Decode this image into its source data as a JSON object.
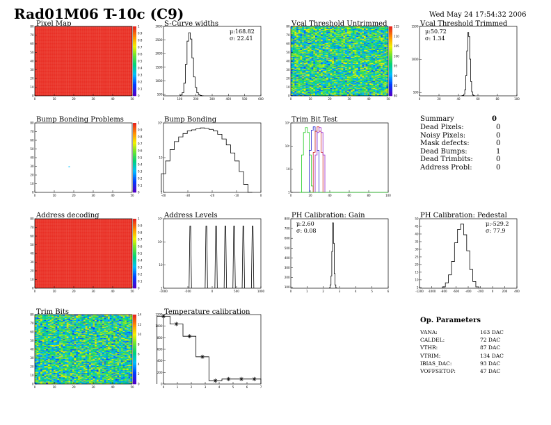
{
  "header": {
    "title": "Rad01M06 T-10c (C9)",
    "date": "Wed May 24 17:54:32 2006"
  },
  "colors": {
    "red": "#e8281e",
    "line": "#000000",
    "green": "#22cc22",
    "blue": "#2222cc",
    "red_line": "#cc2222",
    "purple": "#9922cc"
  },
  "panels": {
    "pixel_map": {
      "title": "Pixel Map",
      "xticks": [
        "0",
        "10",
        "20",
        "30",
        "40",
        "50"
      ],
      "yticks": [
        "0",
        "10",
        "20",
        "30",
        "40",
        "50",
        "60",
        "70",
        "80"
      ],
      "ztick": [
        "0",
        "0.1",
        "0.2",
        "0.3",
        "0.4",
        "0.5",
        "0.6",
        "0.7",
        "0.8",
        "0.9",
        "1"
      ]
    },
    "scurve": {
      "title": "S-Curve widths",
      "mu": "μ:168.82",
      "sigma": "σ: 22.41",
      "xticks": [
        "0",
        "100",
        "200",
        "300",
        "400",
        "500",
        "600"
      ],
      "yticks": [
        "500",
        "1000",
        "1500",
        "2000",
        "2500",
        "3000"
      ]
    },
    "vcal_untrim": {
      "title": "Vcal Threshold Untrimmed",
      "xticks": [
        "0",
        "10",
        "20",
        "30",
        "40",
        "50"
      ],
      "yticks": [
        "0",
        "10",
        "20",
        "30",
        "40",
        "50",
        "60",
        "70",
        "80"
      ],
      "zticks": [
        "80",
        "85",
        "90",
        "95",
        "100",
        "105",
        "110",
        "115"
      ]
    },
    "vcal_trim": {
      "title": "Vcal Threshold Trimmed",
      "mu": "μ:50.72",
      "sigma": "σ: 1.34",
      "xticks": [
        "0",
        "20",
        "40",
        "60",
        "80",
        "100"
      ],
      "yticks": [
        "500",
        "1000",
        "1500"
      ]
    },
    "bump_problems": {
      "title": "Bump Bonding Problems",
      "xticks": [
        "0",
        "10",
        "20",
        "30",
        "40",
        "50"
      ],
      "yticks": [
        "0",
        "10",
        "20",
        "30",
        "40",
        "50",
        "60",
        "70",
        "80"
      ],
      "zticks": [
        "0",
        "0.1",
        "0.2",
        "0.3",
        "0.4",
        "0.5",
        "0.6",
        "0.7",
        "0.8",
        "0.9",
        "1"
      ]
    },
    "bump_bonding": {
      "title": "Bump Bonding",
      "xticks": [
        "-40",
        "-30",
        "-20",
        "-10",
        "0"
      ],
      "yticks": [
        "1",
        "10",
        "10²"
      ]
    },
    "trim_bit": {
      "title": "Trim Bit Test",
      "xticks": [
        "0",
        "20",
        "40",
        "60",
        "80",
        "100"
      ],
      "yticks": [
        "1",
        "10",
        "10²",
        "10³"
      ]
    },
    "summary": {
      "title": "Summary",
      "total": "0",
      "rows": [
        {
          "label": "Dead Pixels:",
          "value": "0"
        },
        {
          "label": "Noisy Pixels:",
          "value": "0"
        },
        {
          "label": "Mask defects:",
          "value": "0"
        },
        {
          "label": "Dead Bumps:",
          "value": "1"
        },
        {
          "label": "Dead Trimbits:",
          "value": "0"
        },
        {
          "label": "Address Probl:",
          "value": "0"
        }
      ]
    },
    "address_decoding": {
      "title": "Address decoding",
      "xticks": [
        "0",
        "10",
        "20",
        "30",
        "40",
        "50"
      ],
      "yticks": [
        "0",
        "10",
        "20",
        "30",
        "40",
        "50",
        "60",
        "70",
        "80"
      ],
      "zticks": [
        "0",
        "0.1",
        "0.2",
        "0.3",
        "0.4",
        "0.5",
        "0.6",
        "0.7",
        "0.8",
        "0.9",
        "1"
      ]
    },
    "address_levels": {
      "title": "Address Levels",
      "xticks": [
        "-1000",
        "-500",
        "0",
        "500",
        "1000"
      ],
      "yticks": [
        "1",
        "10",
        "10²",
        "10³"
      ]
    },
    "ph_gain": {
      "title": "PH Calibration: Gain",
      "mu": "μ:2.60",
      "sigma": "σ: 0.08",
      "xticks": [
        "0",
        "1",
        "2",
        "3",
        "4",
        "5",
        "6"
      ],
      "yticks": [
        "100",
        "200",
        "300",
        "400",
        "500",
        "600",
        "700",
        "800"
      ]
    },
    "ph_pedestal": {
      "title": "PH Calibration: Pedestal",
      "mu": "μ:-529.2",
      "sigma": "σ: 77.9",
      "xticks": [
        "-1200",
        "-1000",
        "-800",
        "-600",
        "-400",
        "-200",
        "0",
        "200",
        "400"
      ],
      "yticks": [
        "5",
        "10",
        "15",
        "20",
        "25",
        "30",
        "35",
        "40",
        "45",
        "50"
      ]
    },
    "trim_bits": {
      "title": "Trim Bits",
      "xticks": [
        "0",
        "10",
        "20",
        "30",
        "40",
        "50"
      ],
      "yticks": [
        "0",
        "10",
        "20",
        "30",
        "40",
        "50",
        "60",
        "70",
        "80"
      ],
      "zticks": [
        "0",
        "2",
        "4",
        "6",
        "8",
        "10",
        "12",
        "14"
      ]
    },
    "temperature": {
      "title": "Temperature calibration",
      "xticks": [
        "0",
        "1",
        "2",
        "3",
        "4",
        "5",
        "6",
        "7"
      ],
      "yticks": [
        "0",
        "200",
        "400",
        "600",
        "800",
        "1000",
        "1200"
      ]
    },
    "op_params": {
      "title": "Op. Parameters",
      "rows": [
        {
          "label": "VANA:",
          "value": "163 DAC"
        },
        {
          "label": "CALDEL:",
          "value": "72 DAC"
        },
        {
          "label": "VTHR:",
          "value": "87 DAC"
        },
        {
          "label": "VTRIM:",
          "value": "134 DAC"
        },
        {
          "label": "IBIAS_DAC:",
          "value": "93 DAC"
        },
        {
          "label": "VOFFSETOP:",
          "value": "47 DAC"
        }
      ]
    }
  },
  "chart_data": [
    {
      "type": "heatmap",
      "title": "Pixel Map",
      "xlim": [
        0,
        52
      ],
      "ylim": [
        0,
        80
      ],
      "note_value": 1
    },
    {
      "type": "bar",
      "title": "S-Curve widths",
      "xlim": [
        0,
        600
      ],
      "ylim": [
        0,
        3300
      ],
      "x": [
        110,
        120,
        130,
        140,
        150,
        160,
        170,
        180,
        190,
        200,
        210,
        220,
        230,
        240
      ],
      "values": [
        40,
        150,
        600,
        1500,
        2600,
        3000,
        2700,
        1800,
        900,
        400,
        150,
        60,
        20,
        5
      ]
    },
    {
      "type": "heatmap",
      "title": "Vcal Threshold Untrimmed",
      "xlim": [
        0,
        52
      ],
      "ylim": [
        0,
        80
      ],
      "zlim": [
        80,
        118
      ]
    },
    {
      "type": "bar",
      "title": "Vcal Threshold Trimmed",
      "xlim": [
        0,
        100
      ],
      "ylim": [
        0,
        1700
      ],
      "x": [
        44,
        45,
        46,
        47,
        48,
        49,
        50,
        51,
        52,
        53,
        54,
        55,
        56
      ],
      "values": [
        5,
        10,
        40,
        150,
        500,
        1100,
        1550,
        1450,
        900,
        350,
        100,
        20,
        5
      ]
    },
    {
      "type": "heatmap",
      "title": "Bump Bonding Problems",
      "xlim": [
        0,
        52
      ],
      "ylim": [
        0,
        80
      ],
      "points": [
        {
          "x": 18,
          "y": 30,
          "z": 0.5
        }
      ]
    },
    {
      "type": "bar",
      "title": "Bump Bonding",
      "xlim": [
        -40,
        5
      ],
      "log_y": true,
      "ylim": [
        1,
        400
      ],
      "x": [
        -40,
        -38,
        -36,
        -34,
        -32,
        -30,
        -28,
        -26,
        -24,
        -22,
        -20,
        -18,
        -16,
        -14,
        -12,
        -10,
        -8,
        -6,
        -4,
        -2,
        0
      ],
      "values": [
        5,
        15,
        40,
        80,
        120,
        160,
        200,
        220,
        240,
        260,
        250,
        230,
        200,
        150,
        100,
        60,
        30,
        15,
        6,
        2,
        1
      ]
    },
    {
      "type": "line",
      "title": "Trim Bit Test",
      "xlim": [
        0,
        100
      ],
      "log_y": true,
      "ylim": [
        1,
        2000
      ],
      "series": [
        {
          "x": [
            10,
            12,
            14,
            16,
            18,
            20,
            22,
            24
          ],
          "values": [
            1,
            60,
            700,
            1200,
            700,
            60,
            2,
            1
          ]
        },
        {
          "x": [
            18,
            20,
            22,
            24,
            26,
            28,
            30
          ],
          "values": [
            1,
            100,
            900,
            1300,
            800,
            100,
            1
          ]
        },
        {
          "x": [
            22,
            24,
            26,
            28,
            30,
            32,
            34
          ],
          "values": [
            1,
            80,
            800,
            1300,
            800,
            80,
            1
          ]
        },
        {
          "x": [
            24,
            26,
            28,
            30,
            32,
            34,
            36
          ],
          "values": [
            1,
            60,
            700,
            1200,
            700,
            60,
            1
          ]
        }
      ]
    },
    {
      "type": "heatmap",
      "title": "Address decoding",
      "xlim": [
        0,
        52
      ],
      "ylim": [
        0,
        80
      ],
      "note_value": 1
    },
    {
      "type": "line",
      "title": "Address Levels",
      "xlim": [
        -1000,
        1000
      ],
      "log_y": true,
      "ylim": [
        1,
        2000
      ],
      "peaks": [
        -450,
        -120,
        80,
        270,
        450,
        640,
        830
      ],
      "peak_height": 900
    },
    {
      "type": "bar",
      "title": "PH Calibration: Gain",
      "xlim": [
        0,
        6
      ],
      "ylim": [
        0,
        850
      ],
      "x": [
        2.4,
        2.45,
        2.5,
        2.55,
        2.6,
        2.65,
        2.7,
        2.75,
        2.8
      ],
      "values": [
        5,
        40,
        150,
        450,
        800,
        550,
        180,
        40,
        5
      ]
    },
    {
      "type": "bar",
      "title": "PH Calibration: Pedestal",
      "xlim": [
        -1200,
        400
      ],
      "ylim": [
        0,
        52
      ],
      "x": [
        -800,
        -750,
        -700,
        -650,
        -600,
        -550,
        -500,
        -450,
        -400,
        -350,
        -300,
        -250
      ],
      "values": [
        1,
        4,
        10,
        20,
        34,
        44,
        48,
        40,
        28,
        14,
        5,
        1
      ]
    },
    {
      "type": "heatmap",
      "title": "Trim Bits",
      "xlim": [
        0,
        52
      ],
      "ylim": [
        0,
        80
      ],
      "zlim": [
        0,
        15
      ]
    },
    {
      "type": "scatter",
      "title": "Temperature calibration",
      "xlim": [
        0,
        7.5
      ],
      "ylim": [
        0,
        1250
      ],
      "x": [
        0,
        1,
        2,
        3,
        4,
        5,
        6,
        7
      ],
      "values": [
        1220,
        1080,
        860,
        490,
        60,
        90,
        90,
        90
      ]
    }
  ]
}
